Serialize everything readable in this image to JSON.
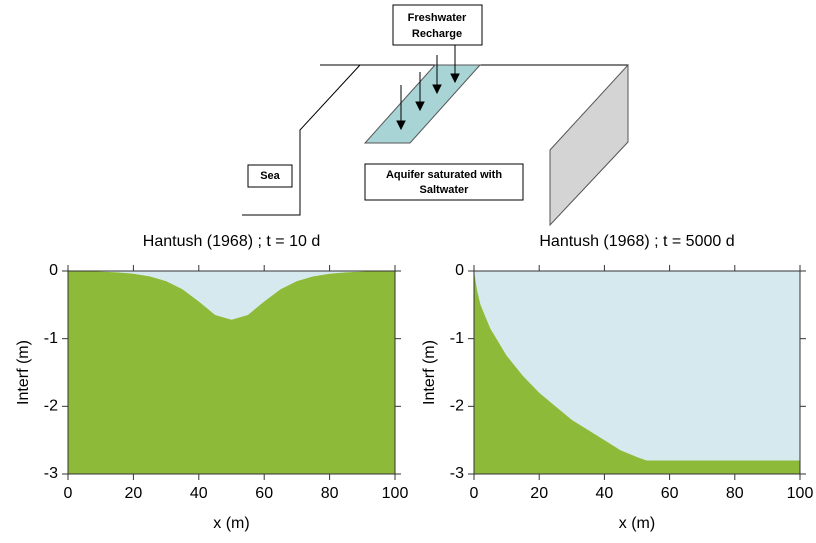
{
  "diagram": {
    "recharge_label": [
      "Freshwater",
      "Recharge"
    ],
    "sea_label": "Sea",
    "aquifer_label": [
      "Aquifer saturated with",
      "Saltwater"
    ]
  },
  "chart_data": [
    {
      "type": "area",
      "title": "Hantush (1968) ; t = 10 d",
      "x_label": "x (m)",
      "y_label": "Interf (m)",
      "x": [
        0,
        5,
        10,
        15,
        20,
        25,
        30,
        35,
        40,
        45,
        50,
        55,
        60,
        65,
        70,
        75,
        80,
        85,
        90,
        95,
        100
      ],
      "values": [
        0,
        0,
        -0.01,
        -0.02,
        -0.04,
        -0.08,
        -0.15,
        -0.27,
        -0.45,
        -0.65,
        -0.72,
        -0.65,
        -0.45,
        -0.27,
        -0.15,
        -0.08,
        -0.04,
        -0.02,
        -0.01,
        0,
        0
      ],
      "color": "#8dba38",
      "top_color": "#d6e9ef",
      "xlim": [
        0,
        100
      ],
      "xticks": [
        0,
        20,
        40,
        60,
        80,
        100
      ],
      "ylim": [
        -3,
        0
      ],
      "yticks": [
        -3,
        -2,
        -1,
        0
      ]
    },
    {
      "type": "area",
      "title": "Hantush (1968) ; t = 5000 d",
      "x_label": "x (m)",
      "y_label": "Interf (m)",
      "x": [
        0,
        1,
        2,
        5,
        10,
        15,
        20,
        25,
        30,
        35,
        40,
        45,
        50,
        53,
        60,
        70,
        80,
        90,
        100
      ],
      "values": [
        0,
        -0.3,
        -0.5,
        -0.85,
        -1.25,
        -1.55,
        -1.8,
        -2.0,
        -2.2,
        -2.35,
        -2.5,
        -2.65,
        -2.75,
        -2.8,
        -2.8,
        -2.8,
        -2.8,
        -2.8,
        -2.8
      ],
      "color": "#8dba38",
      "top_color": "#d6e9ef",
      "xlim": [
        0,
        100
      ],
      "xticks": [
        0,
        20,
        40,
        60,
        80,
        100
      ],
      "ylim": [
        -3,
        0
      ],
      "yticks": [
        -3,
        -2,
        -1,
        0
      ]
    }
  ]
}
